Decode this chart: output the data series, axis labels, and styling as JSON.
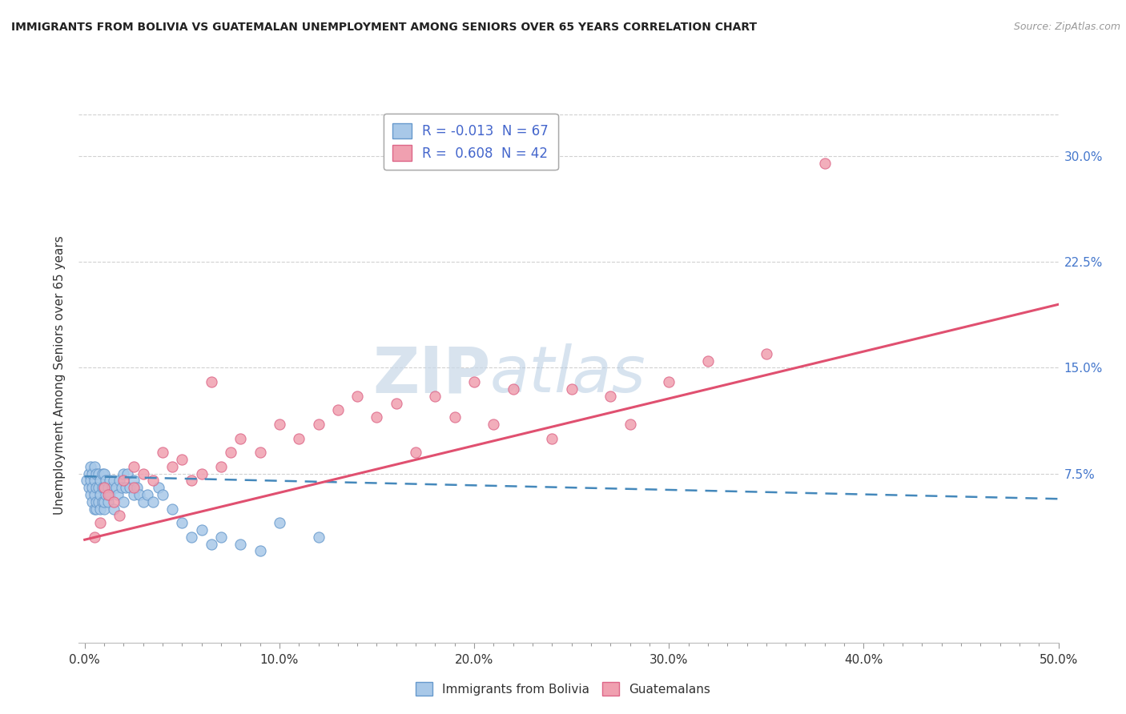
{
  "title": "IMMIGRANTS FROM BOLIVIA VS GUATEMALAN UNEMPLOYMENT AMONG SENIORS OVER 65 YEARS CORRELATION CHART",
  "source": "Source: ZipAtlas.com",
  "ylabel": "Unemployment Among Seniors over 65 years",
  "x_tick_labels": [
    "0.0%",
    "",
    "",
    "",
    "",
    "",
    "",
    "",
    "",
    "",
    "10.0%",
    "",
    "",
    "",
    "",
    "",
    "",
    "",
    "",
    "",
    "20.0%",
    "",
    "",
    "",
    "",
    "",
    "",
    "",
    "",
    "",
    "30.0%",
    "",
    "",
    "",
    "",
    "",
    "",
    "",
    "",
    "",
    "40.0%",
    "",
    "",
    "",
    "",
    "",
    "",
    "",
    "",
    "",
    "50.0%"
  ],
  "x_tick_positions": [
    0.0,
    0.01,
    0.02,
    0.03,
    0.04,
    0.05,
    0.06,
    0.07,
    0.08,
    0.09,
    0.1,
    0.11,
    0.12,
    0.13,
    0.14,
    0.15,
    0.16,
    0.17,
    0.18,
    0.19,
    0.2,
    0.21,
    0.22,
    0.23,
    0.24,
    0.25,
    0.26,
    0.27,
    0.28,
    0.29,
    0.3,
    0.31,
    0.32,
    0.33,
    0.34,
    0.35,
    0.36,
    0.37,
    0.38,
    0.39,
    0.4,
    0.41,
    0.42,
    0.43,
    0.44,
    0.45,
    0.46,
    0.47,
    0.48,
    0.49,
    0.5
  ],
  "x_major_ticks": [
    0.0,
    0.1,
    0.2,
    0.3,
    0.4,
    0.5
  ],
  "x_major_labels": [
    "0.0%",
    "10.0%",
    "20.0%",
    "30.0%",
    "40.0%",
    "50.0%"
  ],
  "right_y_tick_labels": [
    "7.5%",
    "15.0%",
    "22.5%",
    "30.0%"
  ],
  "right_y_tick_positions": [
    0.075,
    0.15,
    0.225,
    0.3
  ],
  "xlim": [
    -0.003,
    0.5
  ],
  "ylim": [
    -0.045,
    0.335
  ],
  "legend_label_blue": "R = -0.013  N = 67",
  "legend_label_pink": "R =  0.608  N = 42",
  "legend_label_blue_series": "Immigrants from Bolivia",
  "legend_label_pink_series": "Guatemalans",
  "blue_color": "#a8c8e8",
  "pink_color": "#f0a0b0",
  "blue_edge_color": "#6699cc",
  "pink_edge_color": "#dd6688",
  "blue_line_color": "#4488bb",
  "pink_line_color": "#e05070",
  "grid_color": "#cccccc",
  "watermark_zip": "ZIP",
  "watermark_atlas": "atlas",
  "blue_scatter_x": [
    0.001,
    0.002,
    0.002,
    0.003,
    0.003,
    0.003,
    0.004,
    0.004,
    0.004,
    0.005,
    0.005,
    0.005,
    0.005,
    0.006,
    0.006,
    0.006,
    0.006,
    0.007,
    0.007,
    0.007,
    0.008,
    0.008,
    0.008,
    0.009,
    0.009,
    0.009,
    0.01,
    0.01,
    0.01,
    0.01,
    0.011,
    0.011,
    0.012,
    0.012,
    0.013,
    0.013,
    0.014,
    0.015,
    0.015,
    0.016,
    0.017,
    0.018,
    0.019,
    0.02,
    0.02,
    0.021,
    0.022,
    0.023,
    0.025,
    0.025,
    0.027,
    0.028,
    0.03,
    0.032,
    0.035,
    0.038,
    0.04,
    0.045,
    0.05,
    0.055,
    0.06,
    0.065,
    0.07,
    0.08,
    0.09,
    0.1,
    0.12
  ],
  "blue_scatter_y": [
    0.07,
    0.065,
    0.075,
    0.06,
    0.07,
    0.08,
    0.055,
    0.065,
    0.075,
    0.05,
    0.06,
    0.07,
    0.08,
    0.05,
    0.055,
    0.065,
    0.075,
    0.055,
    0.065,
    0.075,
    0.05,
    0.06,
    0.07,
    0.055,
    0.065,
    0.075,
    0.05,
    0.055,
    0.065,
    0.075,
    0.06,
    0.07,
    0.055,
    0.065,
    0.06,
    0.07,
    0.065,
    0.05,
    0.07,
    0.065,
    0.06,
    0.07,
    0.065,
    0.055,
    0.075,
    0.065,
    0.075,
    0.065,
    0.06,
    0.07,
    0.065,
    0.06,
    0.055,
    0.06,
    0.055,
    0.065,
    0.06,
    0.05,
    0.04,
    0.03,
    0.035,
    0.025,
    0.03,
    0.025,
    0.02,
    0.04,
    0.03
  ],
  "pink_scatter_x": [
    0.005,
    0.008,
    0.01,
    0.012,
    0.015,
    0.018,
    0.02,
    0.025,
    0.025,
    0.03,
    0.035,
    0.04,
    0.045,
    0.05,
    0.055,
    0.06,
    0.065,
    0.07,
    0.075,
    0.08,
    0.09,
    0.1,
    0.11,
    0.12,
    0.13,
    0.14,
    0.15,
    0.16,
    0.17,
    0.18,
    0.19,
    0.2,
    0.21,
    0.22,
    0.24,
    0.25,
    0.27,
    0.28,
    0.3,
    0.32,
    0.35,
    0.38
  ],
  "pink_scatter_y": [
    0.03,
    0.04,
    0.065,
    0.06,
    0.055,
    0.045,
    0.07,
    0.065,
    0.08,
    0.075,
    0.07,
    0.09,
    0.08,
    0.085,
    0.07,
    0.075,
    0.14,
    0.08,
    0.09,
    0.1,
    0.09,
    0.11,
    0.1,
    0.11,
    0.12,
    0.13,
    0.115,
    0.125,
    0.09,
    0.13,
    0.115,
    0.14,
    0.11,
    0.135,
    0.1,
    0.135,
    0.13,
    0.11,
    0.14,
    0.155,
    0.16,
    0.295
  ],
  "blue_trend_x": [
    0.0,
    0.5
  ],
  "blue_trend_y": [
    0.073,
    0.057
  ],
  "pink_trend_x": [
    0.0,
    0.5
  ],
  "pink_trend_y": [
    0.028,
    0.195
  ]
}
